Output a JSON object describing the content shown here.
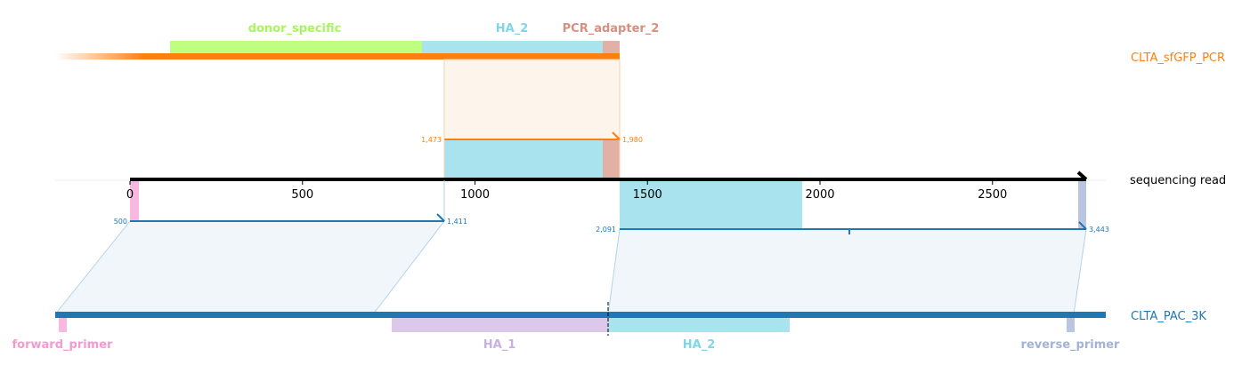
{
  "colors": {
    "orange": "#ff7f0e",
    "blue": "#1f77b4",
    "donor_specific": "#bfff7f",
    "donor_specific_text": "#a8f560",
    "ha": "#a9e4ee",
    "ha_text": "#7fd6e6",
    "pcr_adapter": "#e2b0a4",
    "pcr_adapter_text": "#d4917f",
    "forward_primer": "#f8b8df",
    "forward_primer_text": "#f59ad0",
    "ha_1": "#dcc8ea",
    "ha_1_text": "#c8b0e0",
    "reverse_primer": "#b9c6e1",
    "reverse_primer_text": "#a3b2d6"
  },
  "references": {
    "top": {
      "name": "CLTA_sfGFP_PCR"
    },
    "bottom": {
      "name": "CLTA_PAC_3K"
    }
  },
  "read": {
    "name": "sequencing read"
  },
  "axis": {
    "ticks": [
      {
        "value": 0,
        "label": "0"
      },
      {
        "value": 500,
        "label": "500"
      },
      {
        "value": 1000,
        "label": "1000"
      },
      {
        "value": 1500,
        "label": "1500"
      },
      {
        "value": 2000,
        "label": "2000"
      },
      {
        "value": 2500,
        "label": "2500"
      }
    ]
  },
  "top_features": {
    "donor_specific": "donor_specific",
    "ha_2": "HA_2",
    "pcr_adapter_2": "PCR_adapter_2"
  },
  "bottom_features": {
    "forward_primer": "forward_primer",
    "ha_1": "HA_1",
    "ha_2": "HA_2",
    "reverse_primer": "reverse_primer"
  },
  "alignments": {
    "top": {
      "start": "1,473",
      "end": "1,980"
    },
    "bottom_left": {
      "start": "500",
      "end": "1,411"
    },
    "bottom_right": {
      "start": "2,091",
      "end": "3,443"
    }
  }
}
